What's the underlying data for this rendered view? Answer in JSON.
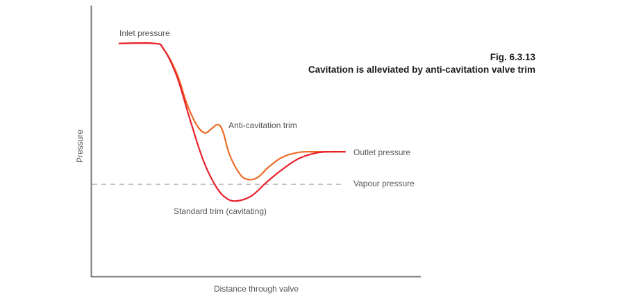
{
  "figure": {
    "number": "Fig. 6.3.13",
    "caption": "Cavitation is alleviated by anti-cavitation valve trim"
  },
  "chart_data": {
    "type": "line",
    "title": "Cavitation is alleviated by anti-cavitation valve trim",
    "xlabel": "Distance through valve",
    "ylabel": "Pressure",
    "xlim": [
      0,
      100
    ],
    "ylim": [
      0,
      100
    ],
    "grid": false,
    "units_note": "arbitrary units; no tick labels shown",
    "series": [
      {
        "name": "Standard trim (cavitating)",
        "color": "#e8202a",
        "x": [
          8.6,
          19.2,
          22,
          26,
          30,
          34,
          38,
          41.5,
          45,
          49,
          53,
          58,
          63,
          68,
          72,
          77
        ],
        "y": [
          86,
          86,
          84,
          74,
          58,
          43,
          33,
          28.5,
          28,
          30,
          34.5,
          39.5,
          43.5,
          45.5,
          46,
          46
        ]
      },
      {
        "name": "Anti-cavitation trim",
        "color": "#ee6b25",
        "x": [
          8.6,
          19.2,
          22,
          26,
          29,
          32,
          34.5,
          36.5,
          38.5,
          40,
          42,
          45,
          47.5,
          50.5,
          54,
          58,
          63,
          68,
          72,
          77
        ],
        "y": [
          86,
          86,
          84,
          75,
          64,
          56,
          53,
          54.5,
          56,
          53.5,
          45,
          38,
          35.8,
          36.5,
          40.5,
          44,
          45.8,
          46,
          46,
          46
        ]
      },
      {
        "name": "Vapour pressure",
        "color": "#999999",
        "style": "dashed",
        "x": [
          0,
          77
        ],
        "y": [
          34,
          34
        ]
      }
    ],
    "annotations": [
      {
        "text": "Inlet pressure",
        "target": "inlet"
      },
      {
        "text": "Anti-cavitation trim",
        "target": "anti-cavitation curve"
      },
      {
        "text": "Outlet pressure",
        "target": "outlet"
      },
      {
        "text": "Vapour pressure",
        "target": "vapour line"
      },
      {
        "text": "Standard trim (cavitating)",
        "target": "standard curve"
      }
    ]
  },
  "labels": {
    "inlet": "Inlet pressure",
    "anti": "Anti-cavitation trim",
    "outlet": "Outlet pressure",
    "vapour": "Vapour pressure",
    "standard": "Standard trim (cavitating)",
    "xaxis": "Distance through valve",
    "yaxis": "Pressure"
  },
  "colors": {
    "axis": "#777777",
    "standard": "#e8202a",
    "anti": "#ee6b25",
    "vapour": "#999999",
    "text": "#555555"
  }
}
